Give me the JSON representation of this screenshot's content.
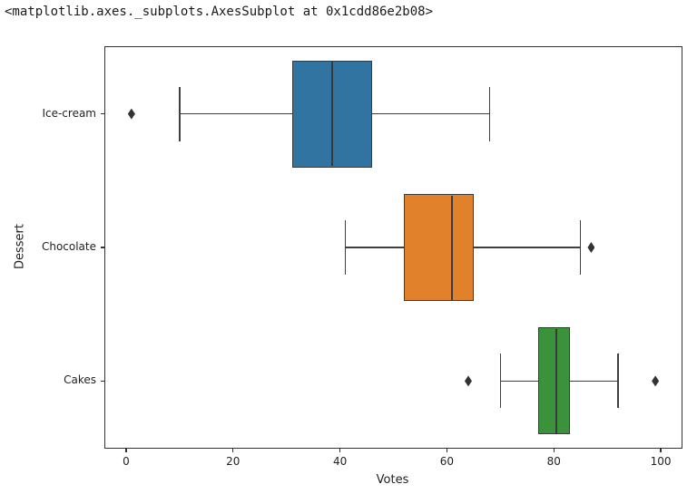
{
  "console": {
    "repr_output": "<matplotlib.axes._subplots.AxesSubplot at 0x1cdd86e2b08>"
  },
  "chart_data": {
    "type": "boxplot",
    "orientation": "horizontal",
    "title": "",
    "xlabel": "Votes",
    "ylabel": "Dessert",
    "xlim": [
      -3.9,
      103.9
    ],
    "x_ticks": [
      0,
      20,
      40,
      60,
      80,
      100
    ],
    "categories": [
      "Ice-cream",
      "Chocolate",
      "Cakes"
    ],
    "grid": false,
    "legend": "none",
    "edge_color": "#3a3a3a",
    "outlier_color": "#333333",
    "series": [
      {
        "name": "Ice-cream",
        "color": "#3274A1",
        "whisker_low": 10,
        "q1": 31,
        "median": 38.5,
        "q3": 46,
        "whisker_high": 68,
        "outliers": [
          1
        ]
      },
      {
        "name": "Chocolate",
        "color": "#E1812C",
        "whisker_low": 41,
        "q1": 52,
        "median": 61,
        "q3": 65,
        "whisker_high": 85,
        "outliers": [
          87
        ]
      },
      {
        "name": "Cakes",
        "color": "#3A923A",
        "whisker_low": 70,
        "q1": 77,
        "median": 80.5,
        "q3": 83,
        "whisker_high": 92,
        "outliers": [
          64,
          99
        ]
      }
    ]
  }
}
